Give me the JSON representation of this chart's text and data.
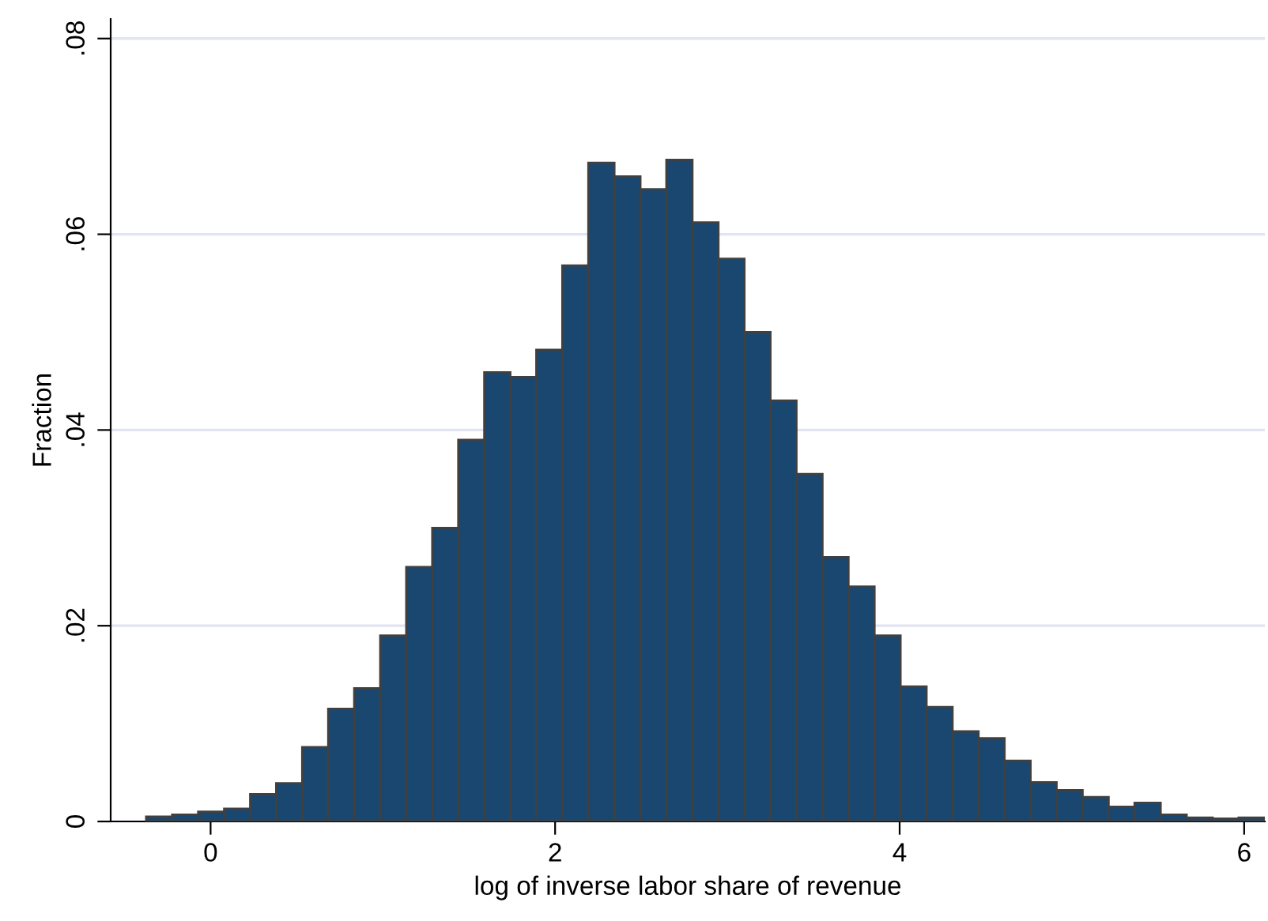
{
  "chart_data": {
    "type": "histogram",
    "xlabel": "log of inverse labor share of revenue",
    "ylabel": "Fraction",
    "bins": [
      -0.374,
      -0.223,
      -0.072,
      0.079,
      0.23,
      0.381,
      0.532,
      0.683,
      0.834,
      0.985,
      1.136,
      1.287,
      1.438,
      1.589,
      1.74,
      1.891,
      2.042,
      2.193,
      2.344,
      2.495,
      2.646,
      2.797,
      2.948,
      3.099,
      3.25,
      3.401,
      3.552,
      3.703,
      3.854,
      4.005,
      4.156,
      4.307,
      4.458,
      4.609,
      4.76,
      4.911,
      5.062,
      5.213,
      5.364,
      5.515,
      5.666,
      5.817,
      5.968,
      6.119
    ],
    "values": [
      0.0005,
      0.0007,
      0.001,
      0.0013,
      0.0028,
      0.0039,
      0.0076,
      0.0115,
      0.0136,
      0.019,
      0.026,
      0.03,
      0.039,
      0.0459,
      0.0454,
      0.0482,
      0.0568,
      0.0673,
      0.0659,
      0.0646,
      0.0676,
      0.0612,
      0.0575,
      0.05,
      0.043,
      0.0355,
      0.027,
      0.024,
      0.019,
      0.0138,
      0.0117,
      0.0092,
      0.0085,
      0.0062,
      0.004,
      0.0032,
      0.0025,
      0.0015,
      0.0019,
      0.0007,
      0.0004,
      0.0003,
      0.0004
    ],
    "color": "#1a476f",
    "xlim": [
      -0.58,
      6.12
    ],
    "ylim": [
      0,
      0.082
    ],
    "xticks": [
      0,
      2,
      4,
      6
    ],
    "yticks": [
      {
        "value": 0,
        "label": "0"
      },
      {
        "value": 0.02,
        "label": ".02"
      },
      {
        "value": 0.04,
        "label": ".04"
      },
      {
        "value": 0.06,
        "label": ".06"
      },
      {
        "value": 0.08,
        "label": ".08"
      }
    ],
    "grid": "y"
  }
}
